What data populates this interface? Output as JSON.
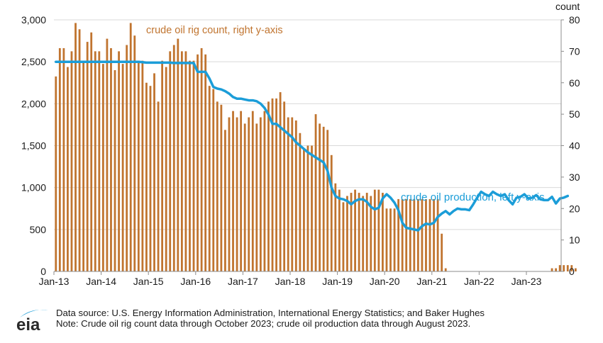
{
  "chart_data": {
    "type": "bar+line",
    "title": "",
    "x_tick_labels": [
      "Jan-13",
      "Jan-14",
      "Jan-15",
      "Jan-16",
      "Jan-17",
      "Jan-18",
      "Jan-19",
      "Jan-20",
      "Jan-21",
      "Jan-22",
      "Jan-23"
    ],
    "x_start": "Jan-13",
    "left_axis": {
      "label": "",
      "ticks": [
        0,
        500,
        1000,
        1500,
        2000,
        2500,
        3000
      ],
      "tick_labels": [
        "0",
        "500",
        "1,000",
        "1,500",
        "2,000",
        "2,500",
        "3,000"
      ],
      "range": [
        0,
        3000
      ]
    },
    "right_axis": {
      "label": "count",
      "ticks": [
        0,
        10,
        20,
        30,
        40,
        50,
        60,
        70,
        80
      ],
      "tick_labels": [
        "0",
        "10",
        "20",
        "30",
        "40",
        "50",
        "60",
        "70",
        "80"
      ],
      "range": [
        0,
        80
      ]
    },
    "grid": "horizontal",
    "series": [
      {
        "name": "crude oil rig count",
        "axis": "right",
        "type": "bar",
        "color": "#c0742f",
        "annotation": "crude oil rig count, right y-axis",
        "start": "Jan-13",
        "values": [
          62,
          71,
          71,
          65,
          70,
          79,
          77,
          67,
          73,
          76,
          70,
          70,
          66,
          74,
          71,
          64,
          70,
          66,
          72,
          79,
          75,
          67,
          67,
          60,
          59,
          63,
          54,
          67,
          65,
          70,
          72,
          74,
          70,
          70,
          67,
          67,
          69,
          71,
          69,
          59,
          58,
          54,
          53,
          45,
          49,
          51,
          49,
          51,
          47,
          49,
          51,
          47,
          49,
          51,
          54,
          55,
          55,
          57,
          54,
          49,
          49,
          48,
          44,
          39,
          40,
          40,
          50,
          47,
          46,
          45,
          37,
          28,
          26,
          22,
          24,
          25,
          26,
          25,
          24,
          25,
          24,
          26,
          26,
          25,
          20,
          20,
          20,
          23,
          23,
          23,
          23,
          23,
          23,
          23,
          23,
          23,
          23,
          23,
          12,
          1,
          0,
          0,
          0,
          0,
          0,
          0,
          0,
          0,
          0,
          0,
          0,
          0,
          0,
          0,
          0,
          0,
          0,
          0,
          0,
          0,
          0,
          0,
          0,
          0,
          0,
          0,
          1,
          1,
          2,
          2,
          2,
          2,
          1
        ]
      },
      {
        "name": "crude oil production",
        "axis": "left",
        "type": "line",
        "color": "#1b9dd8",
        "annotation": "crude oil production, left y-axis",
        "start": "Jan-13",
        "values": [
          2500,
          2500,
          2500,
          2500,
          2500,
          2500,
          2500,
          2500,
          2500,
          2500,
          2500,
          2500,
          2500,
          2500,
          2500,
          2500,
          2500,
          2500,
          2500,
          2500,
          2500,
          2500,
          2495,
          2490,
          2490,
          2490,
          2490,
          2490,
          2490,
          2490,
          2485,
          2485,
          2485,
          2485,
          2485,
          2485,
          2380,
          2380,
          2380,
          2300,
          2200,
          2180,
          2170,
          2150,
          2120,
          2080,
          2060,
          2060,
          2050,
          2040,
          2040,
          2030,
          2000,
          1950,
          1870,
          1760,
          1760,
          1720,
          1680,
          1640,
          1600,
          1540,
          1500,
          1460,
          1420,
          1390,
          1360,
          1330,
          1300,
          1200,
          1000,
          900,
          870,
          860,
          840,
          800,
          840,
          860,
          860,
          830,
          770,
          740,
          760,
          870,
          920,
          880,
          820,
          730,
          580,
          520,
          510,
          500,
          490,
          540,
          570,
          560,
          580,
          650,
          690,
          720,
          680,
          720,
          750,
          740,
          740,
          730,
          800,
          880,
          950,
          920,
          900,
          950,
          920,
          900,
          920,
          850,
          800,
          880,
          890,
          920,
          870,
          880,
          910,
          860,
          850,
          850,
          890,
          810,
          870,
          880,
          900
        ]
      }
    ]
  },
  "footer": {
    "logo_text": "eia",
    "source_line": "Data source: U.S. Energy Information Administration, International Energy Statistics; and Baker Hughes",
    "note_line": "Note: Crude oil rig count data through October 2023; crude oil production data through August 2023."
  }
}
